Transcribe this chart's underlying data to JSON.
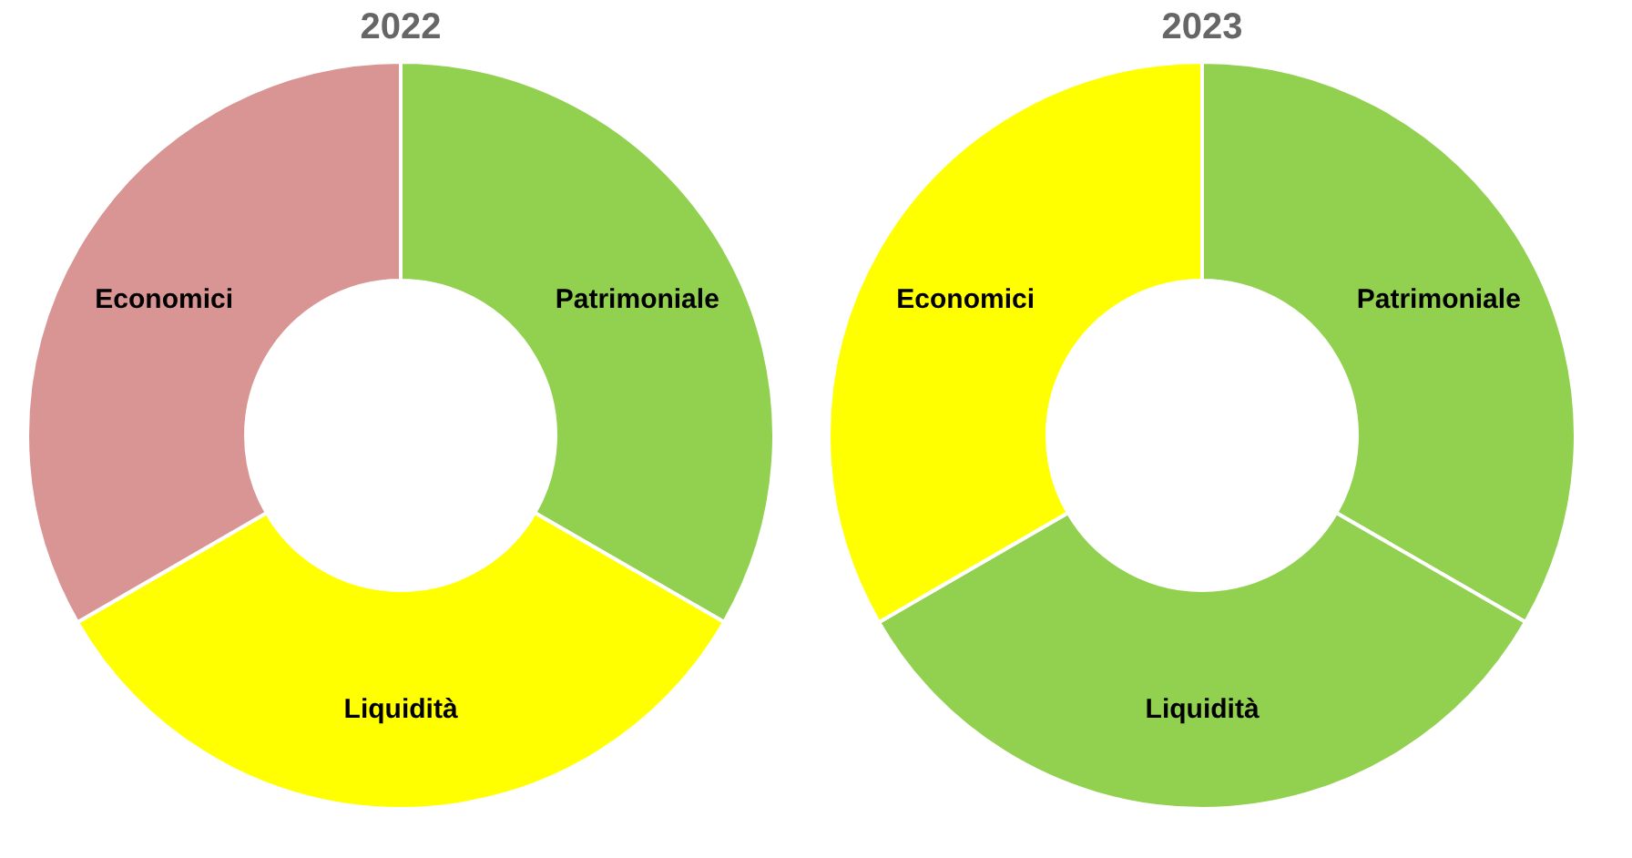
{
  "chart_data": [
    {
      "type": "donut",
      "title": "2022",
      "categories": [
        "Patrimoniale",
        "Liquidità",
        "Economici"
      ],
      "values": [
        33.33,
        33.33,
        33.34
      ],
      "colors": [
        "#92d050",
        "#ffff00",
        "#d99594"
      ],
      "legend": false
    },
    {
      "type": "donut",
      "title": "2023",
      "categories": [
        "Patrimoniale",
        "Liquidità",
        "Economici"
      ],
      "values": [
        33.33,
        33.33,
        33.34
      ],
      "colors": [
        "#92d050",
        "#92d050",
        "#ffff00"
      ],
      "legend": false
    }
  ]
}
